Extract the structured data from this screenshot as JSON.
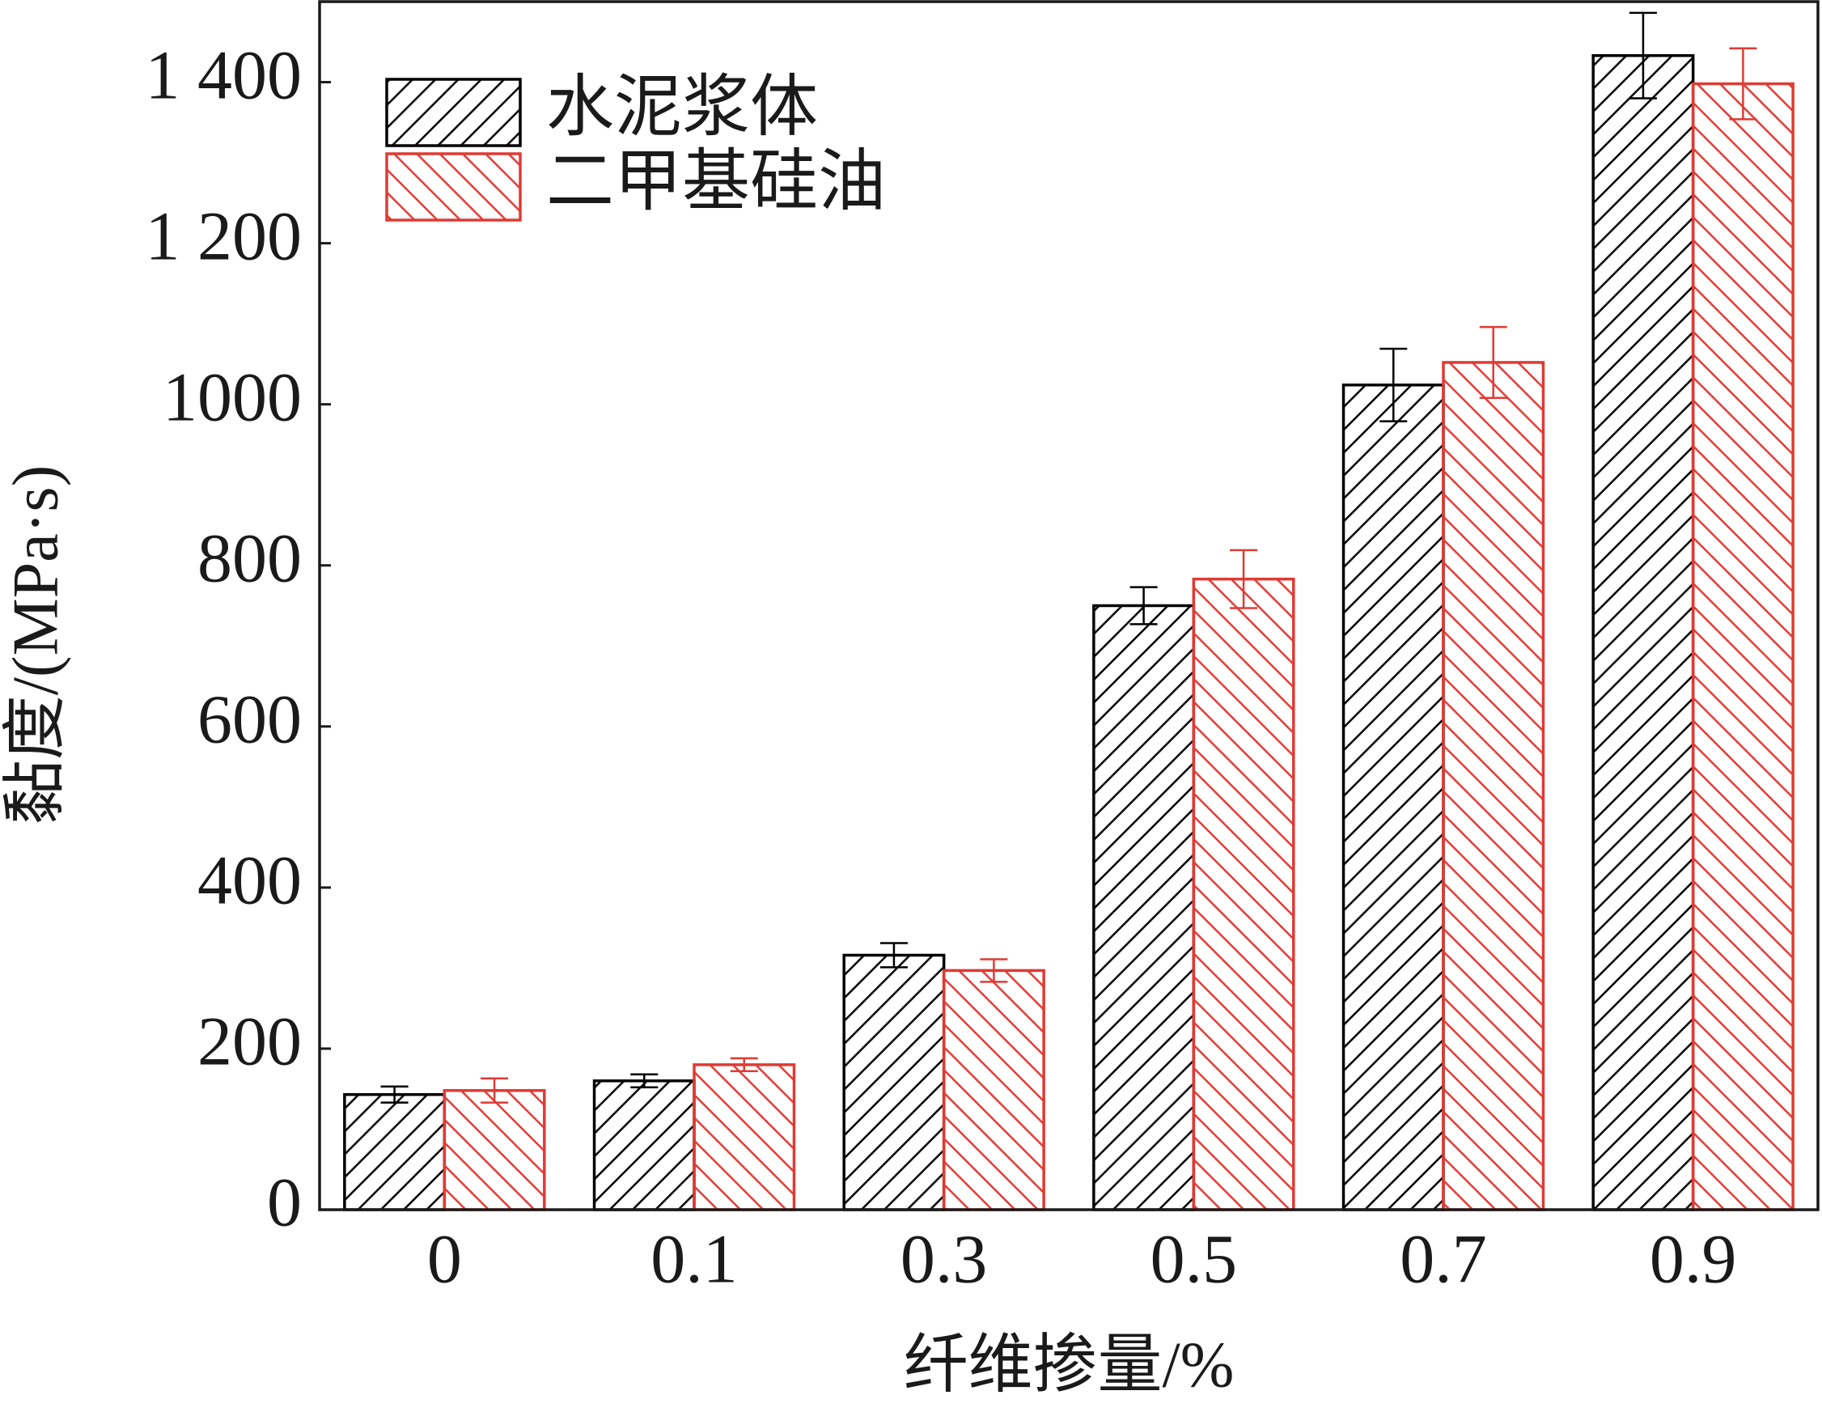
{
  "chart_data": {
    "type": "bar",
    "x_label": "纤维掺量/%",
    "y_label": "黏度/(MPa·s)",
    "categories": [
      "0",
      "0.1",
      "0.3",
      "0.5",
      "0.7",
      "0.9"
    ],
    "series": [
      {
        "name": "水泥浆体",
        "color": "#000000",
        "hatch": "/",
        "values": [
          143,
          160,
          316,
          750,
          1024,
          1433
        ],
        "errors": [
          10,
          8,
          15,
          23,
          45,
          53
        ]
      },
      {
        "name": "二甲基硅油",
        "color": "#e03a33",
        "hatch": "\\",
        "values": [
          148,
          180,
          297,
          783,
          1052,
          1398
        ],
        "errors": [
          15,
          8,
          14,
          36,
          44,
          44
        ]
      }
    ],
    "ylim": [
      0,
      1500
    ],
    "yticks": [
      0,
      200,
      400,
      600,
      800,
      1000,
      {
        "value": 1200,
        "label": "1 200"
      },
      {
        "value": 1400,
        "label": "1 400"
      }
    ],
    "legend": "upper left",
    "grid": false
  }
}
